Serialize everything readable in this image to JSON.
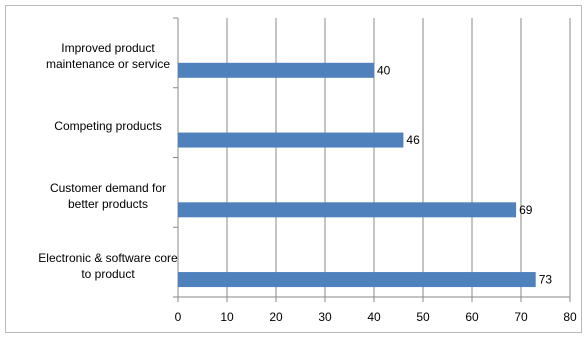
{
  "chart_data": {
    "type": "bar",
    "orientation": "horizontal",
    "categories": [
      "Improved product maintenance or service",
      "Competing products",
      "Customer demand for better products",
      "Electronic & software core to product"
    ],
    "values": [
      40,
      46,
      69,
      73
    ],
    "color": "#4f81bd",
    "xlim": [
      0,
      80
    ],
    "xticks": [
      0,
      10,
      20,
      30,
      40,
      50,
      60,
      70,
      80
    ],
    "grid": true
  }
}
